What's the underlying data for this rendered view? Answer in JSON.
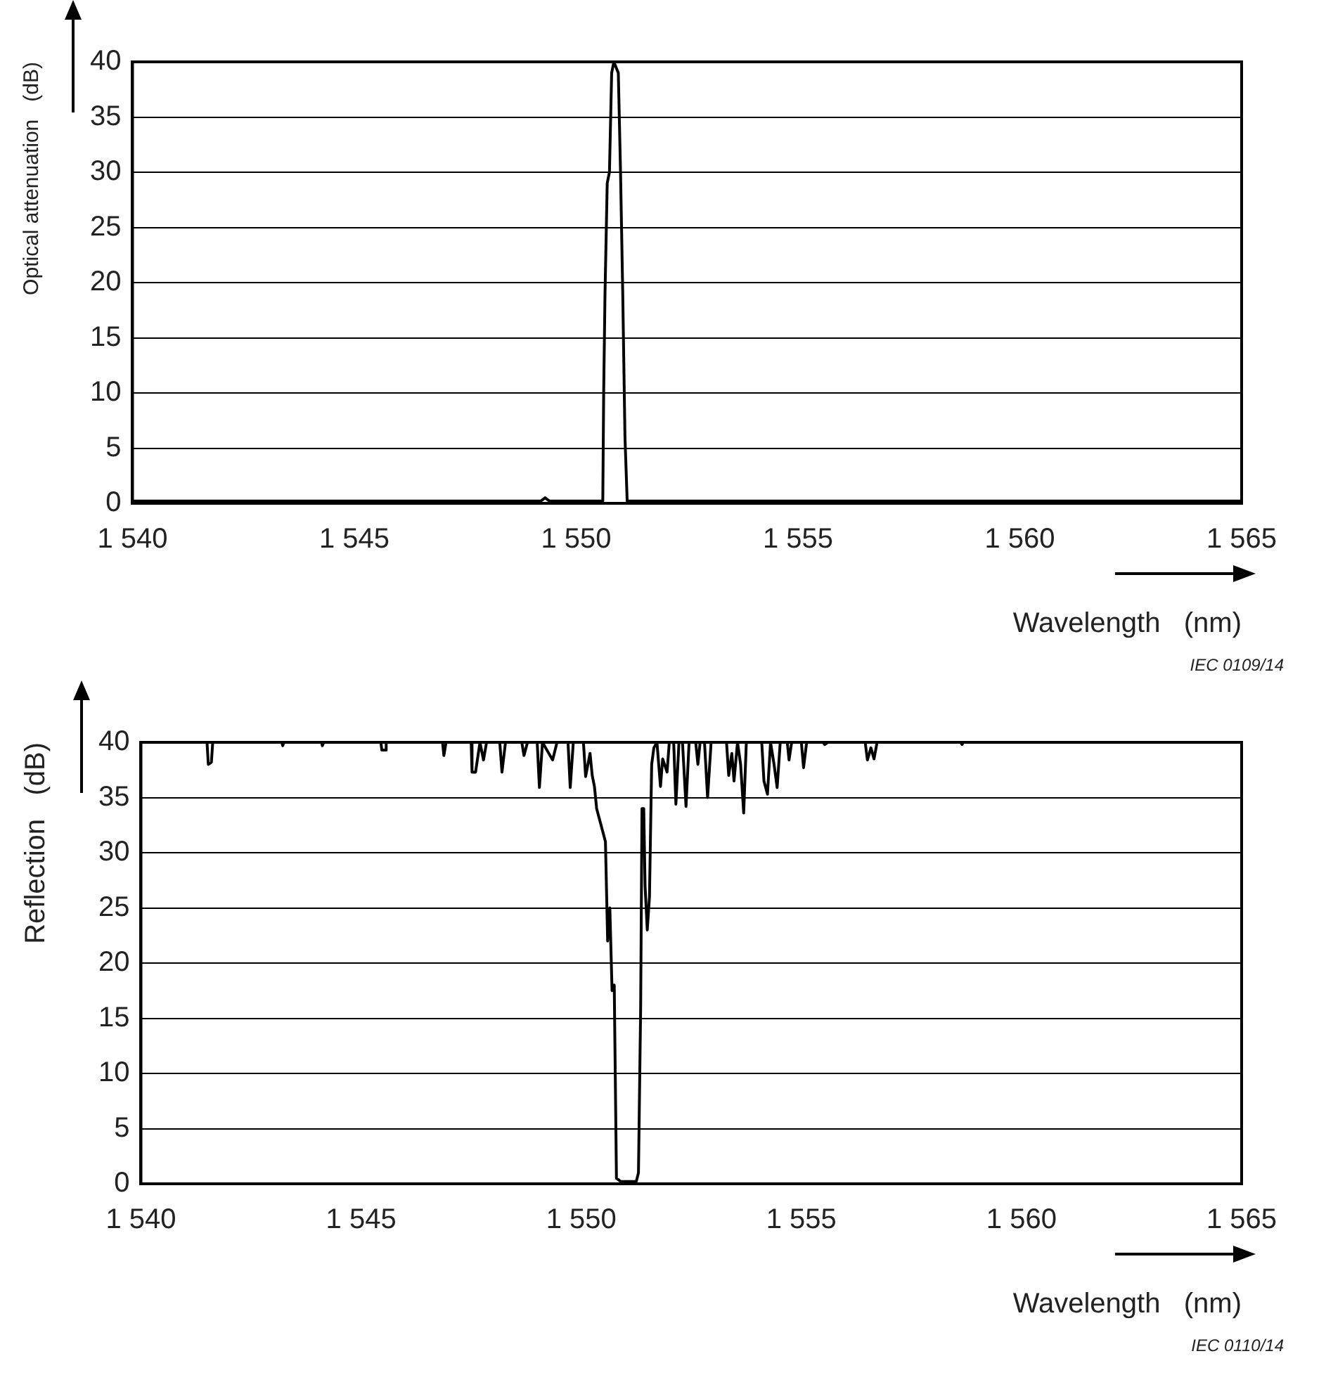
{
  "chart_data": [
    {
      "type": "line",
      "xlabel": "Wavelength   (nm)",
      "ylabel": "Optical attenuation   (dB)",
      "annotations": [
        "IEC  0109/14"
      ],
      "xlim": [
        1540,
        1565
      ],
      "xticks": [
        {
          "value": 1540,
          "label": "1 540"
        },
        {
          "value": 1545,
          "label": "1 545"
        },
        {
          "value": 1550,
          "label": "1 550"
        },
        {
          "value": 1555,
          "label": "1 555"
        },
        {
          "value": 1560,
          "label": "1 560"
        },
        {
          "value": 1565,
          "label": "1 565"
        }
      ],
      "ylim": [
        0,
        40
      ],
      "yticks": [
        0,
        5,
        10,
        15,
        20,
        25,
        30,
        35,
        40
      ],
      "grid": "y",
      "line_style": "solid",
      "series": [
        {
          "color": "#000000",
          "x": [
            1540,
            1549.2,
            1549.3,
            1549.4,
            1550.6,
            1550.62,
            1550.65,
            1550.7,
            1550.75,
            1550.8,
            1550.85,
            1550.95,
            1551.0,
            1551.05,
            1551.1,
            1551.15,
            1565
          ],
          "values": [
            0.2,
            0.2,
            0.5,
            0.2,
            0.2,
            10,
            19,
            29,
            30,
            39,
            40,
            39,
            30,
            19,
            6,
            0.2,
            0.2
          ]
        }
      ]
    },
    {
      "type": "line",
      "xlabel": "Wavelength   (nm)",
      "ylabel": "Reflection   (dB)",
      "annotations": [
        "IEC  0110/14"
      ],
      "xlim": [
        1540,
        1565
      ],
      "xticks": [
        {
          "value": 1540,
          "label": "1 540"
        },
        {
          "value": 1545,
          "label": "1 545"
        },
        {
          "value": 1550,
          "label": "1 550"
        },
        {
          "value": 1555,
          "label": "1 555"
        },
        {
          "value": 1560,
          "label": "1 560"
        },
        {
          "value": 1565,
          "label": "1 565"
        }
      ],
      "ylim": [
        0,
        40
      ],
      "yticks": [
        0,
        5,
        10,
        15,
        20,
        25,
        30,
        35,
        40
      ],
      "grid": "y",
      "line_style": "solid",
      "series": [
        {
          "color": "#000000",
          "x": [
            1540,
            1541.5,
            1541.53,
            1541.6,
            1541.63,
            1543.2,
            1543.22,
            1543.25,
            1544.1,
            1544.12,
            1544.15,
            1545.45,
            1545.47,
            1545.55,
            1545.57,
            1546.85,
            1546.88,
            1546.93,
            1547.5,
            1547.52,
            1547.6,
            1547.7,
            1547.78,
            1547.85,
            1548.15,
            1548.2,
            1548.28,
            1548.65,
            1548.7,
            1548.78,
            1549.0,
            1549.05,
            1549.12,
            1549.35,
            1549.45,
            1549.7,
            1549.75,
            1549.82,
            1550.05,
            1550.1,
            1550.2,
            1550.25,
            1550.3,
            1550.35,
            1550.45,
            1550.55,
            1550.6,
            1550.65,
            1550.7,
            1550.75,
            1550.8,
            1550.9,
            1551.25,
            1551.3,
            1551.35,
            1551.38,
            1551.42,
            1551.45,
            1551.5,
            1551.55,
            1551.6,
            1551.65,
            1551.72,
            1551.8,
            1551.85,
            1551.95,
            1552.0,
            1552.1,
            1552.15,
            1552.22,
            1552.3,
            1552.38,
            1552.45,
            1552.6,
            1552.65,
            1552.7,
            1552.8,
            1552.87,
            1552.95,
            1553.3,
            1553.35,
            1553.42,
            1553.47,
            1553.55,
            1553.62,
            1553.69,
            1553.75,
            1554.1,
            1554.15,
            1554.23,
            1554.3,
            1554.38,
            1554.45,
            1554.52,
            1554.68,
            1554.72,
            1554.78,
            1555.0,
            1555.05,
            1555.12,
            1555.5,
            1555.53,
            1555.6,
            1556.45,
            1556.5,
            1556.58,
            1556.65,
            1556.72,
            1558.62,
            1558.65,
            1558.68,
            1565
          ],
          "values": [
            40,
            40,
            38,
            38.2,
            40,
            40,
            39.7,
            40,
            40,
            39.7,
            40,
            40,
            39.3,
            39.3,
            40,
            40,
            38.8,
            40,
            40,
            37.3,
            37.3,
            40,
            38.4,
            40,
            40,
            37.3,
            40,
            40,
            38.8,
            40,
            40,
            35.9,
            40,
            38.4,
            40,
            40,
            35.9,
            40,
            40,
            36.9,
            39,
            37,
            36,
            34,
            32.5,
            31,
            22,
            25,
            17.5,
            18,
            0.5,
            0.2,
            0.2,
            1,
            16,
            34,
            34,
            27,
            23,
            26,
            38,
            39.5,
            40,
            36,
            38.5,
            37.3,
            40,
            40,
            34.4,
            40,
            40,
            34.2,
            40,
            40,
            38,
            40,
            40,
            35,
            40,
            40,
            37,
            39,
            36.5,
            40,
            38,
            33.6,
            40,
            40,
            36.5,
            35.3,
            40,
            38,
            35.9,
            40,
            40,
            38.4,
            40,
            40,
            37.7,
            40,
            40,
            39.8,
            40,
            40,
            38.4,
            39.5,
            38.5,
            40,
            40,
            39.8,
            40,
            40
          ]
        }
      ]
    }
  ]
}
